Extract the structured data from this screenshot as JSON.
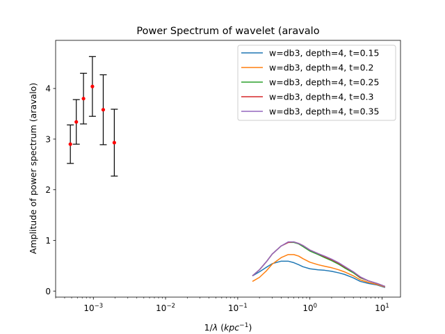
{
  "chart_data": {
    "type": "line",
    "title": "Power Spectrum of wavelet (aravalo",
    "xlabel_prefix": "1/",
    "xlabel_symbol": "λ",
    "xlabel_open": " (",
    "xlabel_unit": "kpc",
    "xlabel_exp": "−1",
    "xlabel_close": ")",
    "ylabel": "Amplitude of power spectrum (aravalo)",
    "xscale": "log",
    "xlim": [
      0.0003,
      18
    ],
    "ylim": [
      -0.12,
      4.95
    ],
    "x_ticks": [
      {
        "value": 0.001,
        "base": "10",
        "exp": "−3"
      },
      {
        "value": 0.01,
        "base": "10",
        "exp": "−2"
      },
      {
        "value": 0.1,
        "base": "10",
        "exp": "−1"
      },
      {
        "value": 1,
        "base": "10",
        "exp": "0"
      },
      {
        "value": 10,
        "base": "10",
        "exp": "1"
      }
    ],
    "y_ticks": [
      {
        "value": 0,
        "label": "0"
      },
      {
        "value": 1,
        "label": "1"
      },
      {
        "value": 2,
        "label": "2"
      },
      {
        "value": 3,
        "label": "3"
      },
      {
        "value": 4,
        "label": "4"
      }
    ],
    "legend_position": "top-right",
    "errorbar_points": {
      "color": "#ff0000",
      "errcolor": "#000000",
      "x": [
        0.00048,
        0.00058,
        0.00073,
        0.00097,
        0.00137,
        0.00195
      ],
      "y": [
        2.9,
        3.34,
        3.8,
        4.04,
        3.58,
        2.93
      ],
      "err": [
        0.38,
        0.44,
        0.5,
        0.59,
        0.69,
        0.66
      ]
    },
    "x": [
      0.16,
      0.2,
      0.25,
      0.3,
      0.4,
      0.5,
      0.6,
      0.7,
      0.8,
      1.0,
      1.3,
      1.6,
      2.0,
      2.5,
      3.0,
      4.0,
      5.0,
      6.5,
      8.5,
      11.0
    ],
    "series": [
      {
        "name": "w=db3, depth=4, t=0.15",
        "color": "#1f77b4",
        "values": [
          0.3,
          0.38,
          0.47,
          0.54,
          0.59,
          0.59,
          0.56,
          0.52,
          0.48,
          0.44,
          0.42,
          0.41,
          0.39,
          0.36,
          0.33,
          0.26,
          0.19,
          0.15,
          0.12,
          0.07
        ]
      },
      {
        "name": "w=db3, depth=4, t=0.2",
        "color": "#ff7f0e",
        "values": [
          0.19,
          0.27,
          0.4,
          0.53,
          0.66,
          0.72,
          0.72,
          0.69,
          0.64,
          0.57,
          0.52,
          0.49,
          0.46,
          0.42,
          0.38,
          0.3,
          0.22,
          0.17,
          0.13,
          0.08
        ]
      },
      {
        "name": "w=db3, depth=4, t=0.25",
        "color": "#2ca02c",
        "values": [
          0.3,
          0.42,
          0.58,
          0.73,
          0.89,
          0.96,
          0.96,
          0.93,
          0.88,
          0.79,
          0.72,
          0.66,
          0.6,
          0.53,
          0.46,
          0.36,
          0.26,
          0.2,
          0.15,
          0.09
        ]
      },
      {
        "name": "w=db3, depth=4, t=0.3",
        "color": "#d62728",
        "values": [
          0.3,
          0.42,
          0.58,
          0.73,
          0.89,
          0.96,
          0.97,
          0.94,
          0.9,
          0.81,
          0.74,
          0.68,
          0.62,
          0.55,
          0.48,
          0.38,
          0.27,
          0.2,
          0.15,
          0.09
        ]
      },
      {
        "name": "w=db3, depth=4, t=0.35",
        "color": "#9467bd",
        "values": [
          0.3,
          0.42,
          0.58,
          0.73,
          0.89,
          0.97,
          0.97,
          0.94,
          0.9,
          0.81,
          0.74,
          0.69,
          0.63,
          0.56,
          0.49,
          0.38,
          0.28,
          0.2,
          0.15,
          0.09
        ]
      }
    ]
  }
}
